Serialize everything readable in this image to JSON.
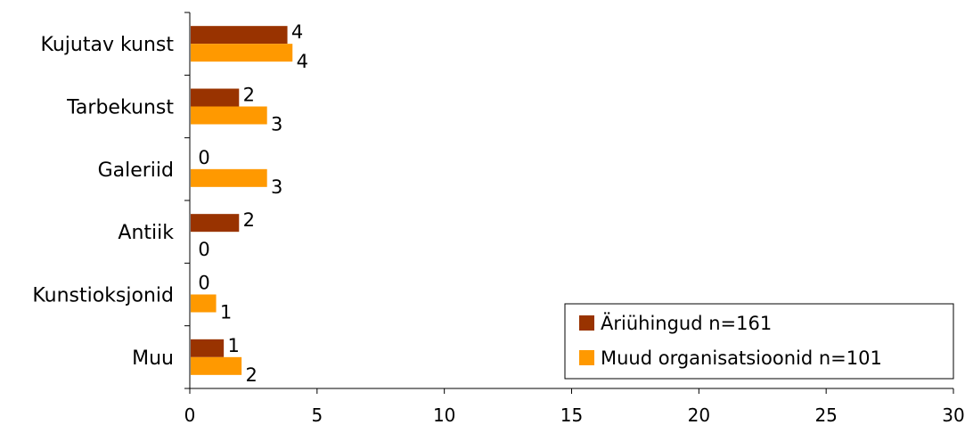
{
  "chart_data": {
    "type": "bar",
    "orientation": "horizontal",
    "categories": [
      "Kujutav kunst",
      "Tarbekunst",
      "Galeriid",
      "Antiik",
      "Kunstioksjonid",
      "Muu"
    ],
    "series": [
      {
        "name": "Äriühingud n=161",
        "color": "#993300",
        "values": [
          3.8,
          1.9,
          0,
          1.9,
          0,
          1.3
        ],
        "labels": [
          "4",
          "2",
          "0",
          "2",
          "0",
          "1"
        ]
      },
      {
        "name": "Muud organisatsioonid n=101",
        "color": "#ff9900",
        "values": [
          4.0,
          3.0,
          3.0,
          0,
          1.0,
          2.0
        ],
        "labels": [
          "4",
          "3",
          "3",
          "0",
          "1",
          "2"
        ]
      }
    ],
    "xlim": [
      0,
      30
    ],
    "xticks": [
      "0",
      "5",
      "10",
      "15",
      "20",
      "25",
      "30"
    ],
    "legend_position": "bottom-right",
    "grid": false
  }
}
